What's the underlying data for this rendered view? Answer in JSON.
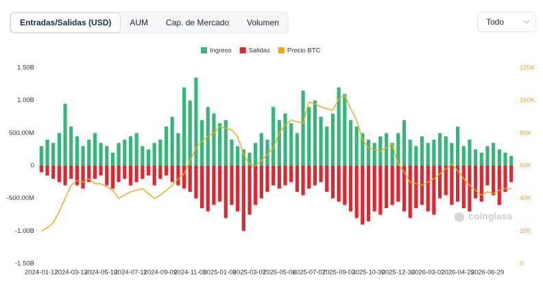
{
  "tabs": [
    "Entradas/Salidas (USD)",
    "AUM",
    "Cap. de Mercado",
    "Volumen"
  ],
  "range_select": "Todo",
  "chart_data": {
    "type": "bar",
    "watermark": "coinglass",
    "grid": false,
    "categories": [
      "2024-01-12",
      null,
      null,
      null,
      null,
      "2024-03-13",
      null,
      null,
      null,
      null,
      "2024-05-10",
      null,
      null,
      null,
      null,
      "2024-07-11",
      null,
      null,
      null,
      null,
      "2024-09-09",
      null,
      null,
      null,
      null,
      "2024-11-05",
      null,
      null,
      null,
      null,
      "2025-01-06",
      null,
      null,
      null,
      null,
      "2025-03-07",
      null,
      null,
      null,
      null,
      "2025-05-06",
      null,
      null,
      null,
      null,
      "2025-07-07",
      null,
      null,
      null,
      null,
      "2025-09-03",
      null,
      null,
      null,
      null,
      "2025-10-30",
      null,
      null,
      null,
      null,
      "2025-12-30",
      null,
      null,
      null,
      null,
      "2026-03-02",
      null,
      null,
      null,
      null,
      "2026-04-29",
      null,
      null,
      null,
      null,
      "2026-06-29",
      null,
      null,
      null,
      null
    ],
    "series": [
      {
        "name": "Ingreso",
        "color": "#35b77a",
        "values": [
          300000000,
          400000000,
          350000000,
          500000000,
          950000000,
          600000000,
          450000000,
          300000000,
          400000000,
          500000000,
          350000000,
          300000000,
          200000000,
          350000000,
          400000000,
          450000000,
          500000000,
          300000000,
          250000000,
          350000000,
          400000000,
          600000000,
          750000000,
          500000000,
          1200000000,
          1000000000,
          1350000000,
          700000000,
          900000000,
          800000000,
          650000000,
          700000000,
          400000000,
          300000000,
          250000000,
          200000000,
          350000000,
          500000000,
          400000000,
          900000000,
          700000000,
          800000000,
          650000000,
          500000000,
          1150000000,
          900000000,
          1000000000,
          750000000,
          600000000,
          800000000,
          1200000000,
          1100000000,
          700000000,
          600000000,
          500000000,
          400000000,
          350000000,
          450000000,
          500000000,
          350000000,
          500000000,
          700000000,
          400000000,
          300000000,
          450000000,
          350000000,
          400000000,
          500000000,
          450000000,
          350000000,
          600000000,
          300000000,
          400000000,
          250000000,
          200000000,
          300000000,
          350000000,
          250000000,
          200000000,
          150000000
        ]
      },
      {
        "name": "Salidas",
        "color": "#e0262f",
        "values": [
          -100000000,
          -150000000,
          -200000000,
          -250000000,
          -300000000,
          -200000000,
          -300000000,
          -350000000,
          -250000000,
          -200000000,
          -150000000,
          -300000000,
          -350000000,
          -250000000,
          -200000000,
          -300000000,
          -250000000,
          -200000000,
          -150000000,
          -300000000,
          -200000000,
          -150000000,
          -250000000,
          -300000000,
          -350000000,
          -400000000,
          -500000000,
          -650000000,
          -700000000,
          -600000000,
          -550000000,
          -800000000,
          -600000000,
          -700000000,
          -1000000000,
          -750000000,
          -600000000,
          -500000000,
          -400000000,
          -300000000,
          -350000000,
          -300000000,
          -250000000,
          -400000000,
          -450000000,
          -350000000,
          -300000000,
          -250000000,
          -400000000,
          -500000000,
          -550000000,
          -600000000,
          -700000000,
          -800000000,
          -900000000,
          -850000000,
          -700000000,
          -750000000,
          -650000000,
          -600000000,
          -550000000,
          -700000000,
          -800000000,
          -650000000,
          -600000000,
          -700000000,
          -750000000,
          -500000000,
          -450000000,
          -600000000,
          -550000000,
          -650000000,
          -700000000,
          -500000000,
          -550000000,
          -300000000,
          -450000000,
          -600000000,
          -400000000,
          -250000000
        ]
      },
      {
        "name": "Precio BTC",
        "color": "#f0a81c",
        "axis": "y2",
        "values": [
          20000,
          22000,
          25000,
          32000,
          40000,
          48000,
          51000,
          50000,
          52000,
          49000,
          49000,
          47000,
          45000,
          40000,
          42000,
          44000,
          45000,
          46000,
          43000,
          40000,
          42000,
          45000,
          48000,
          52000,
          55000,
          63000,
          71000,
          75000,
          78000,
          80000,
          84000,
          83000,
          82000,
          78000,
          67000,
          61000,
          60000,
          63000,
          67000,
          71000,
          80000,
          85000,
          88000,
          87000,
          86000,
          99000,
          98000,
          96000,
          95000,
          94000,
          101000,
          103000,
          95000,
          88000,
          76000,
          71000,
          70000,
          69000,
          71000,
          73000,
          61000,
          56000,
          50000,
          49000,
          48000,
          50000,
          52000,
          55000,
          58000,
          61000,
          57000,
          52000,
          48000,
          45000,
          42000,
          44000,
          43000,
          45000,
          46000,
          46000
        ]
      }
    ],
    "ylim": [
      -1500000000,
      1500000000
    ],
    "yticks": [
      {
        "value": -1500000000,
        "label": "-1.50B"
      },
      {
        "value": -1000000000,
        "label": "-1.00B"
      },
      {
        "value": -500000000,
        "label": "-500.00M"
      },
      0,
      {
        "value": 500000000,
        "label": "500.00M"
      },
      {
        "value": 1000000000,
        "label": "1.00B"
      },
      {
        "value": 1500000000,
        "label": "1.50B"
      }
    ],
    "y2lim": [
      0,
      120000
    ],
    "y2ticks": [
      0,
      {
        "value": 20000,
        "label": "20K"
      },
      {
        "value": 40000,
        "label": "40K"
      },
      {
        "value": 60000,
        "label": "60K"
      },
      {
        "value": 80000,
        "label": "80K"
      },
      {
        "value": 100000,
        "label": "100K"
      },
      {
        "value": 120000,
        "label": "120K"
      }
    ]
  }
}
